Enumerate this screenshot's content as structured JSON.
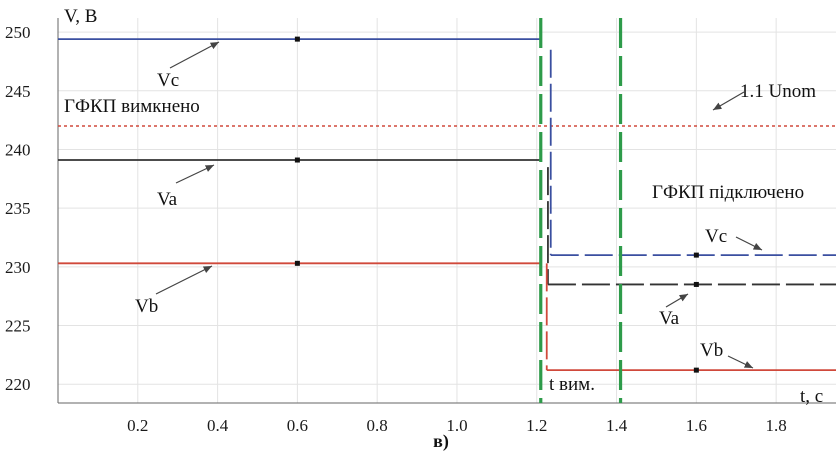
{
  "chart_data": {
    "type": "line",
    "title": "",
    "xlabel": "t, c",
    "ylabel": "V, B",
    "caption": "в)",
    "xlim": [
      0.0,
      1.95
    ],
    "ylim": [
      218.4,
      251.2
    ],
    "x_ticks": [
      0.2,
      0.4,
      0.6,
      0.8,
      1.0,
      1.2,
      1.4,
      1.6,
      1.8
    ],
    "x_tick_labels": [
      "0.2",
      "0.4",
      "0.6",
      "0.8",
      "1.0",
      "1.2",
      "1.4",
      "1.6",
      "1.8"
    ],
    "y_ticks": [
      220,
      225,
      230,
      235,
      240,
      245,
      250
    ],
    "y_tick_labels": [
      "220",
      "225",
      "230",
      "235",
      "240",
      "245",
      "250"
    ],
    "grid": true,
    "colors": {
      "Vc": "#3a4fa0",
      "Va": "#333333",
      "Vb": "#d0493b",
      "limit": "#d0493b",
      "events": "#2e9b4a"
    },
    "series": [
      {
        "name": "Vc",
        "segments": [
          {
            "style": "solid",
            "points": [
              [
                0.0,
                249.4
              ],
              [
                1.21,
                249.4
              ]
            ]
          },
          {
            "style": "dashed",
            "points": [
              [
                1.235,
                248.5
              ],
              [
                1.235,
                231.0
              ]
            ]
          },
          {
            "style": "dashed",
            "points": [
              [
                1.235,
                231.0
              ],
              [
                1.95,
                231.0
              ]
            ]
          }
        ],
        "markers": [
          [
            0.6,
            249.4
          ],
          [
            1.6,
            231.0
          ]
        ]
      },
      {
        "name": "Va",
        "segments": [
          {
            "style": "solid",
            "points": [
              [
                0.0,
                239.1
              ],
              [
                1.21,
                239.1
              ]
            ]
          },
          {
            "style": "dashed",
            "points": [
              [
                1.228,
                238.5
              ],
              [
                1.228,
                228.5
              ]
            ]
          },
          {
            "style": "dashed",
            "points": [
              [
                1.228,
                228.5
              ],
              [
                1.95,
                228.5
              ]
            ]
          }
        ],
        "markers": [
          [
            0.6,
            239.1
          ],
          [
            1.6,
            228.5
          ]
        ]
      },
      {
        "name": "Vb",
        "segments": [
          {
            "style": "solid",
            "points": [
              [
                0.0,
                230.3
              ],
              [
                1.21,
                230.3
              ]
            ]
          },
          {
            "style": "dashed",
            "points": [
              [
                1.225,
                230.3
              ],
              [
                1.225,
                221.2
              ]
            ]
          },
          {
            "style": "solid",
            "points": [
              [
                1.225,
                221.2
              ],
              [
                1.95,
                221.2
              ]
            ]
          }
        ],
        "markers": [
          [
            0.6,
            230.3
          ],
          [
            1.6,
            221.2
          ]
        ]
      }
    ],
    "reference_line": {
      "name": "1.1 Unom",
      "y": 242.0,
      "style": "dotted"
    },
    "events": [
      {
        "label": "t вим.",
        "x": 1.21
      },
      {
        "label": "",
        "x": 1.41
      }
    ],
    "annotations": {
      "state_off": "ГФКП вимкнено",
      "state_on": "ГФКП підключено",
      "vc_left": "Vc",
      "va_left": "Va",
      "vb_left": "Vb",
      "vc_right": "Vc",
      "va_right": "Va",
      "vb_right": "Vb",
      "unom": "1.1 Unom"
    }
  }
}
